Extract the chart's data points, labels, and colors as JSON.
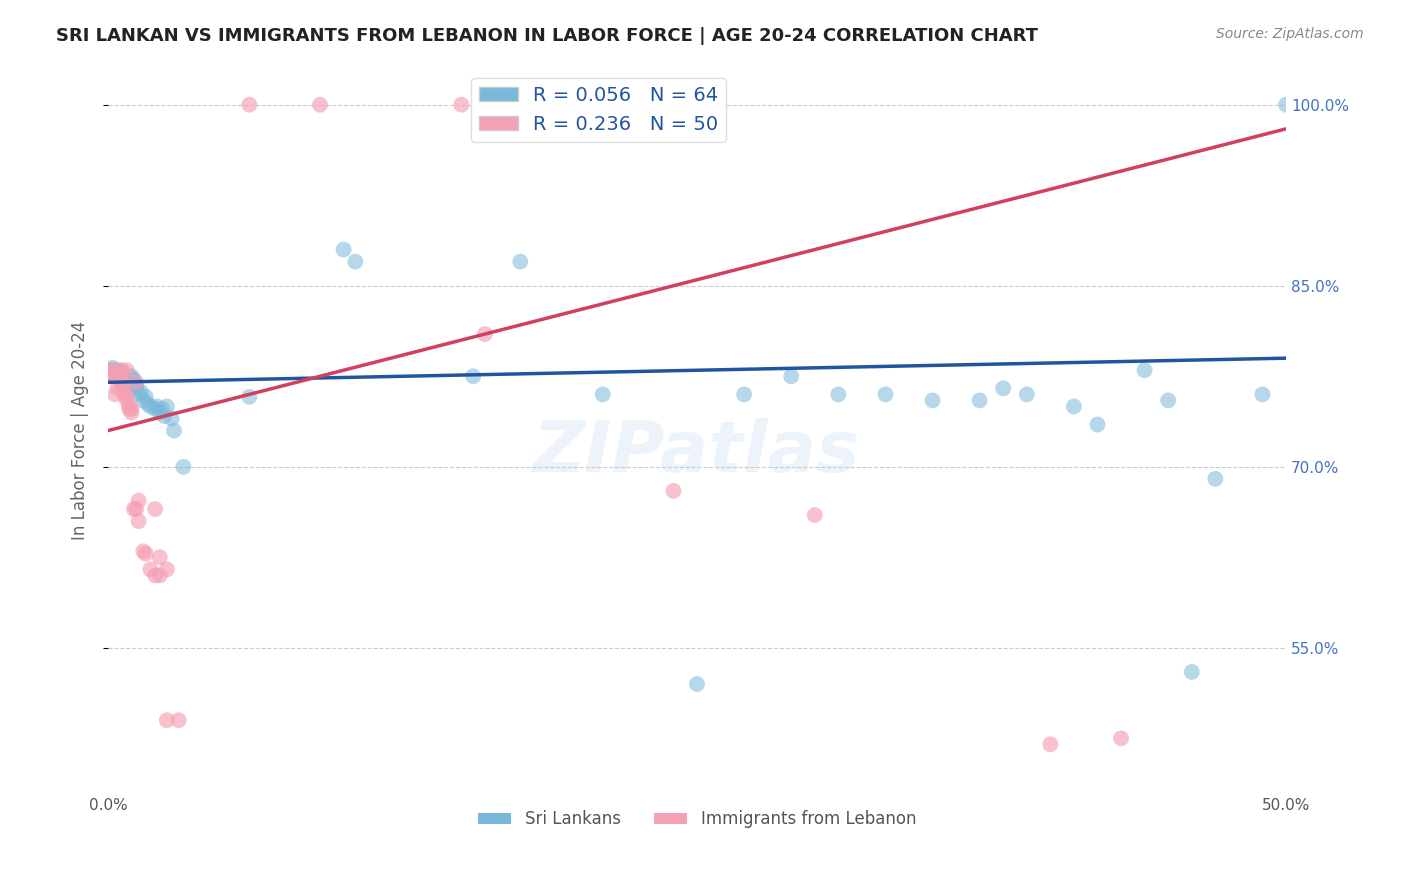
{
  "title": "SRI LANKAN VS IMMIGRANTS FROM LEBANON IN LABOR FORCE | AGE 20-24 CORRELATION CHART",
  "source": "Source: ZipAtlas.com",
  "ylabel": "In Labor Force | Age 20-24",
  "xmin": 0.0,
  "xmax": 0.5,
  "ymin": 0.43,
  "ymax": 1.03,
  "yticks": [
    0.55,
    0.7,
    0.85,
    1.0
  ],
  "ytick_labels": [
    "55.0%",
    "70.0%",
    "85.0%",
    "100.0%"
  ],
  "xticks": [
    0.0,
    0.05,
    0.1,
    0.15,
    0.2,
    0.25,
    0.3,
    0.35,
    0.4,
    0.45,
    0.5
  ],
  "xtick_labels": [
    "0.0%",
    "",
    "",
    "",
    "",
    "",
    "",
    "",
    "",
    "",
    "50.0%"
  ],
  "blue_line_x0": 0.0,
  "blue_line_y0": 0.77,
  "blue_line_x1": 0.5,
  "blue_line_y1": 0.79,
  "pink_line_x0": 0.0,
  "pink_line_y0": 0.73,
  "pink_line_x1": 0.5,
  "pink_line_y1": 0.98,
  "sri_lankans_x": [
    0.001,
    0.001,
    0.002,
    0.002,
    0.003,
    0.003,
    0.003,
    0.004,
    0.004,
    0.005,
    0.005,
    0.005,
    0.006,
    0.006,
    0.007,
    0.007,
    0.008,
    0.008,
    0.009,
    0.009,
    0.01,
    0.01,
    0.011,
    0.011,
    0.012,
    0.012,
    0.013,
    0.014,
    0.015,
    0.016,
    0.017,
    0.018,
    0.02,
    0.021,
    0.022,
    0.023,
    0.024,
    0.025,
    0.027,
    0.028,
    0.032,
    0.06,
    0.1,
    0.105,
    0.155,
    0.175,
    0.21,
    0.25,
    0.27,
    0.29,
    0.31,
    0.33,
    0.35,
    0.37,
    0.38,
    0.39,
    0.41,
    0.42,
    0.44,
    0.45,
    0.46,
    0.47,
    0.49,
    0.5
  ],
  "sri_lankans_y": [
    0.775,
    0.78,
    0.775,
    0.782,
    0.778,
    0.775,
    0.78,
    0.775,
    0.778,
    0.775,
    0.778,
    0.78,
    0.775,
    0.778,
    0.77,
    0.768,
    0.772,
    0.768,
    0.77,
    0.775,
    0.775,
    0.772,
    0.772,
    0.768,
    0.765,
    0.768,
    0.76,
    0.762,
    0.755,
    0.758,
    0.752,
    0.75,
    0.748,
    0.75,
    0.745,
    0.748,
    0.742,
    0.75,
    0.74,
    0.73,
    0.7,
    0.758,
    0.88,
    0.87,
    0.775,
    0.87,
    0.76,
    0.52,
    0.76,
    0.775,
    0.76,
    0.76,
    0.755,
    0.755,
    0.765,
    0.76,
    0.75,
    0.735,
    0.78,
    0.755,
    0.53,
    0.69,
    0.76,
    1.0
  ],
  "lebanon_x": [
    0.001,
    0.001,
    0.002,
    0.002,
    0.003,
    0.003,
    0.004,
    0.004,
    0.005,
    0.005,
    0.005,
    0.005,
    0.006,
    0.006,
    0.006,
    0.007,
    0.007,
    0.008,
    0.008,
    0.009,
    0.009,
    0.01,
    0.01,
    0.011,
    0.012,
    0.013,
    0.015,
    0.016,
    0.018,
    0.02,
    0.022,
    0.025,
    0.003,
    0.004,
    0.006,
    0.008,
    0.012,
    0.013,
    0.02,
    0.022,
    0.025,
    0.03,
    0.06,
    0.09,
    0.15,
    0.16,
    0.24,
    0.3,
    0.4,
    0.43
  ],
  "lebanon_y": [
    0.778,
    0.775,
    0.78,
    0.775,
    0.775,
    0.778,
    0.775,
    0.775,
    0.772,
    0.775,
    0.778,
    0.775,
    0.77,
    0.772,
    0.768,
    0.76,
    0.762,
    0.755,
    0.758,
    0.75,
    0.748,
    0.745,
    0.748,
    0.665,
    0.665,
    0.655,
    0.63,
    0.628,
    0.615,
    0.61,
    0.61,
    0.615,
    0.76,
    0.765,
    0.78,
    0.78,
    0.77,
    0.672,
    0.665,
    0.625,
    0.49,
    0.49,
    1.0,
    1.0,
    1.0,
    0.81,
    0.68,
    0.66,
    0.47,
    0.475
  ],
  "R_blue": 0.056,
  "N_blue": 64,
  "R_pink": 0.236,
  "N_pink": 50,
  "blue_color": "#7ab8d9",
  "pink_color": "#f4a0b5",
  "blue_line_color": "#2255a0",
  "pink_line_color": "#d04060",
  "background_color": "#ffffff",
  "watermark_text": "ZIPatlas",
  "grid_color": "#cccccc",
  "title_color": "#222222",
  "axis_label_color": "#666666",
  "right_axis_color": "#4472c4",
  "source_color": "#888888"
}
